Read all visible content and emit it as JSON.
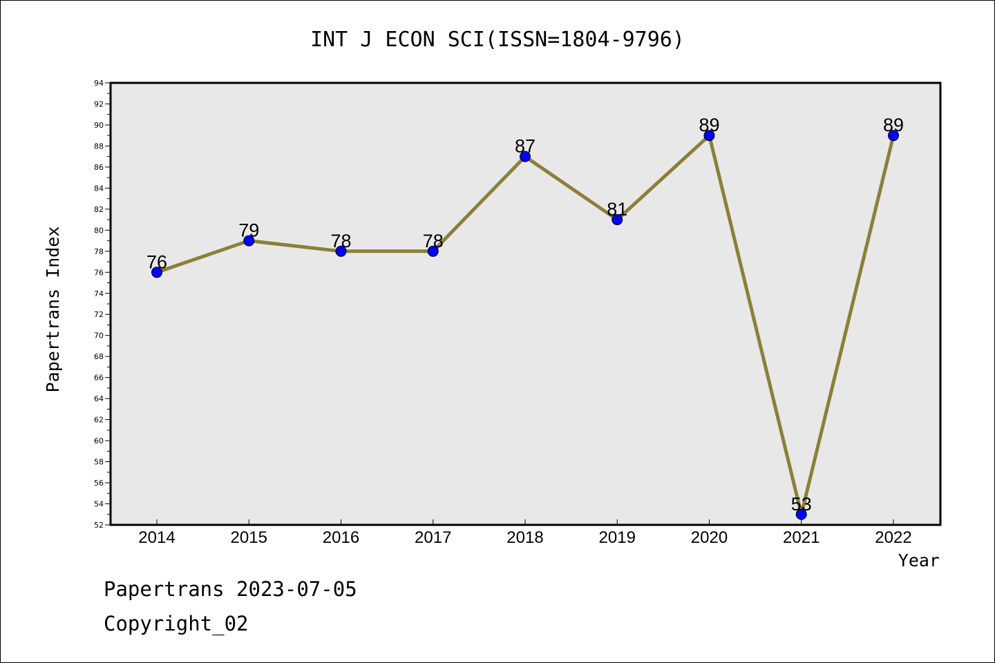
{
  "chart_data": {
    "type": "line",
    "title": "INT J ECON SCI(ISSN=1804-9796)",
    "xlabel": "Year",
    "ylabel": "Papertrans Index",
    "categories": [
      "2014",
      "2015",
      "2016",
      "2017",
      "2018",
      "2019",
      "2020",
      "2021",
      "2022"
    ],
    "values": [
      76,
      79,
      78,
      78,
      87,
      81,
      89,
      53,
      89
    ],
    "ylim": [
      52,
      94
    ],
    "y_major_step": 2,
    "grid": false,
    "legend": "none",
    "colors": {
      "line": "#8B7F3A",
      "marker": "#0000FF",
      "plot_background": "#E8E8E8"
    }
  },
  "footer": {
    "date_line": "Papertrans 2023-07-05",
    "copyright": "Copyright_02"
  }
}
